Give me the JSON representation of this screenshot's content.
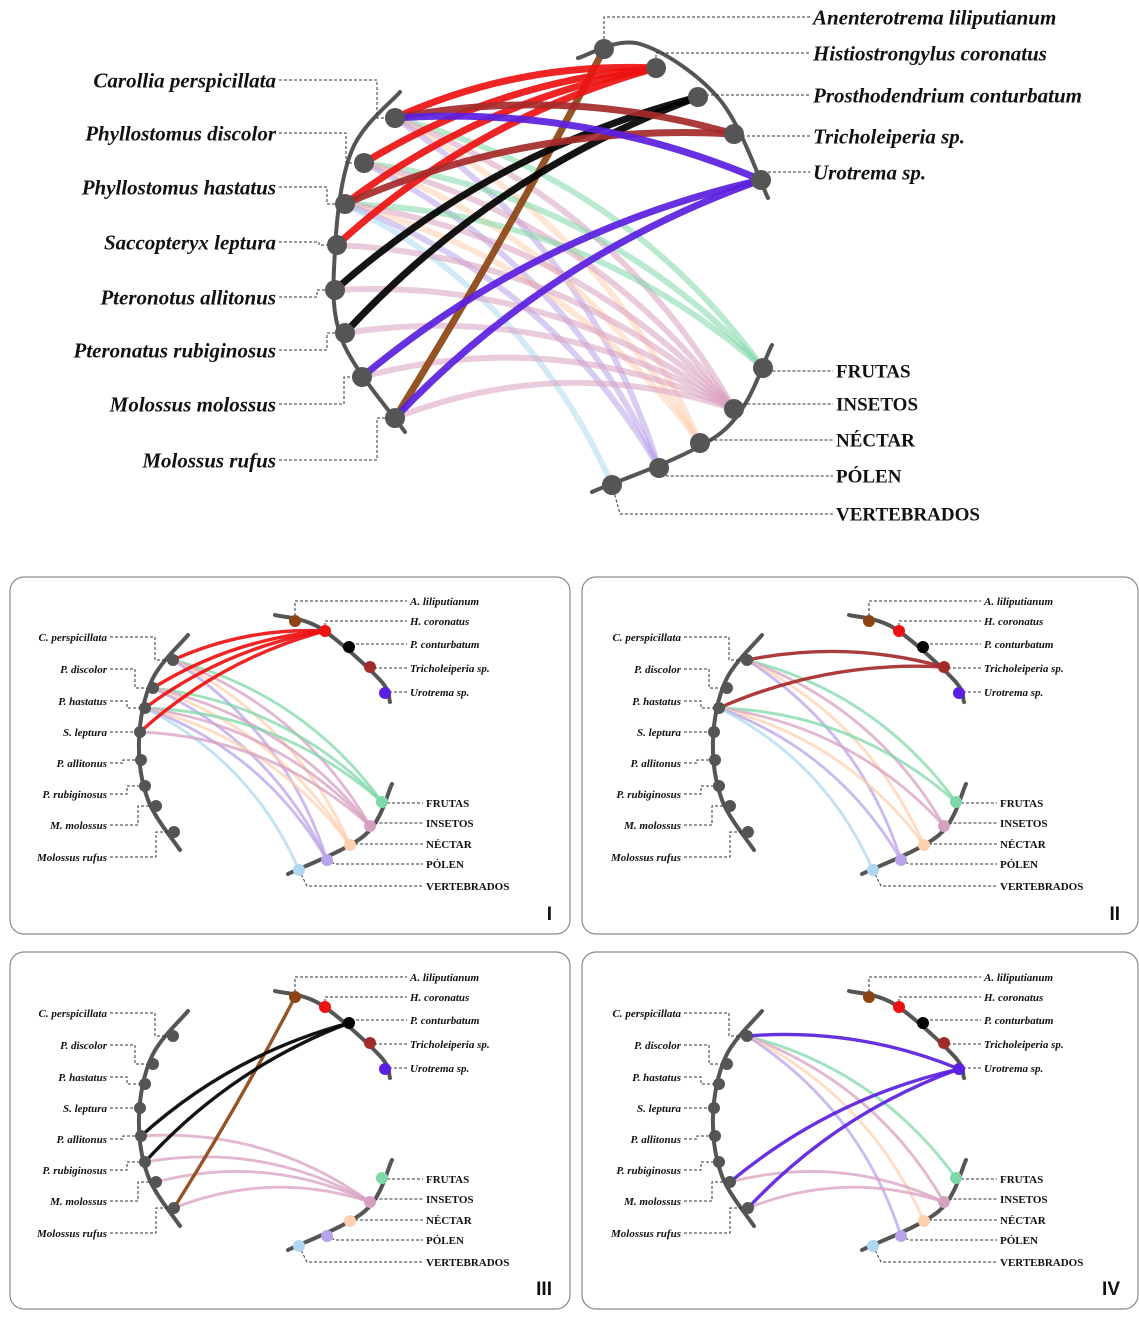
{
  "bats_full": [
    "Carollia perspicillata",
    "Phyllostomus discolor",
    "Phyllostomus hastatus",
    "Saccopteryx leptura",
    "Pteronotus allitonus",
    "Pteronatus rubiginosus",
    "Molossus molossus",
    "Molossus rufus"
  ],
  "bats_short": [
    "C. perspicillata",
    "P. discolor",
    "P. hastatus",
    "S. leptura",
    "P. allitonus",
    "P. rubiginosus",
    "M. molossus",
    "Molossus rufus"
  ],
  "parasites_full": [
    "Anenterotrema liliputianum",
    "Histiostrongylus coronatus",
    "Prosthodendrium conturbatum",
    "Tricholeiperia sp.",
    "Urotrema sp."
  ],
  "parasites_short": [
    "A. liliputianum",
    "H. coronatus",
    "P. conturbatum",
    "Tricholeiperia sp.",
    "Urotrema sp."
  ],
  "diets": [
    "FRUTAS",
    "INSETOS",
    "NÉCTAR",
    "PÓLEN",
    "VERTEBRADOS"
  ],
  "panel_labels": [
    "I",
    "II",
    "III",
    "IV"
  ],
  "colors": {
    "node_gray": "#555555",
    "arc_gray": "#555555",
    "parasites": [
      "#8b4513",
      "#ee1111",
      "#000000",
      "#a52a2a",
      "#5a1fe0"
    ],
    "diets": [
      "#7fd8a8",
      "#d8a0c0",
      "#ffd0b0",
      "#b9a3e8",
      "#aed8f0"
    ]
  },
  "diet_links": {
    "Carollia perspicillata": [
      "FRUTAS",
      "INSETOS",
      "NÉCTAR",
      "PÓLEN"
    ],
    "Phyllostomus discolor": [
      "FRUTAS",
      "INSETOS",
      "NÉCTAR",
      "PÓLEN"
    ],
    "Phyllostomus hastatus": [
      "FRUTAS",
      "INSETOS",
      "NÉCTAR",
      "PÓLEN",
      "VERTEBRADOS"
    ],
    "Saccopteryx leptura": [
      "INSETOS"
    ],
    "Pteronotus allitonus": [
      "INSETOS"
    ],
    "Pteronatus rubiginosus": [
      "INSETOS"
    ],
    "Molossus molossus": [
      "INSETOS"
    ],
    "Molossus rufus": [
      "INSETOS"
    ]
  },
  "parasite_links": {
    "Anenterotrema liliputianum": [
      "Molossus rufus"
    ],
    "Histiostrongylus coronatus": [
      "Carollia perspicillata",
      "Phyllostomus discolor",
      "Phyllostomus hastatus",
      "Saccopteryx leptura"
    ],
    "Prosthodendrium conturbatum": [
      "Pteronotus allitonus",
      "Pteronatus rubiginosus"
    ],
    "Tricholeiperia sp.": [
      "Carollia perspicillata",
      "Phyllostomus hastatus"
    ],
    "Urotrema sp.": [
      "Carollia perspicillata",
      "Molossus molossus",
      "Molossus rufus"
    ]
  },
  "panels": [
    {
      "parasites": [
        "Histiostrongylus coronatus"
      ],
      "bats": [
        "Carollia perspicillata",
        "Phyllostomus discolor",
        "Phyllostomus hastatus",
        "Saccopteryx leptura"
      ]
    },
    {
      "parasites": [
        "Tricholeiperia sp."
      ],
      "bats": [
        "Carollia perspicillata",
        "Phyllostomus hastatus"
      ]
    },
    {
      "parasites": [
        "Anenterotrema liliputianum",
        "Prosthodendrium conturbatum"
      ],
      "bats": [
        "Pteronotus allitonus",
        "Pteronatus rubiginosus",
        "Molossus molossus",
        "Molossus rufus"
      ]
    },
    {
      "parasites": [
        "Urotrema sp."
      ],
      "bats": [
        "Carollia perspicillata",
        "Molossus molossus",
        "Molossus rufus"
      ]
    }
  ]
}
